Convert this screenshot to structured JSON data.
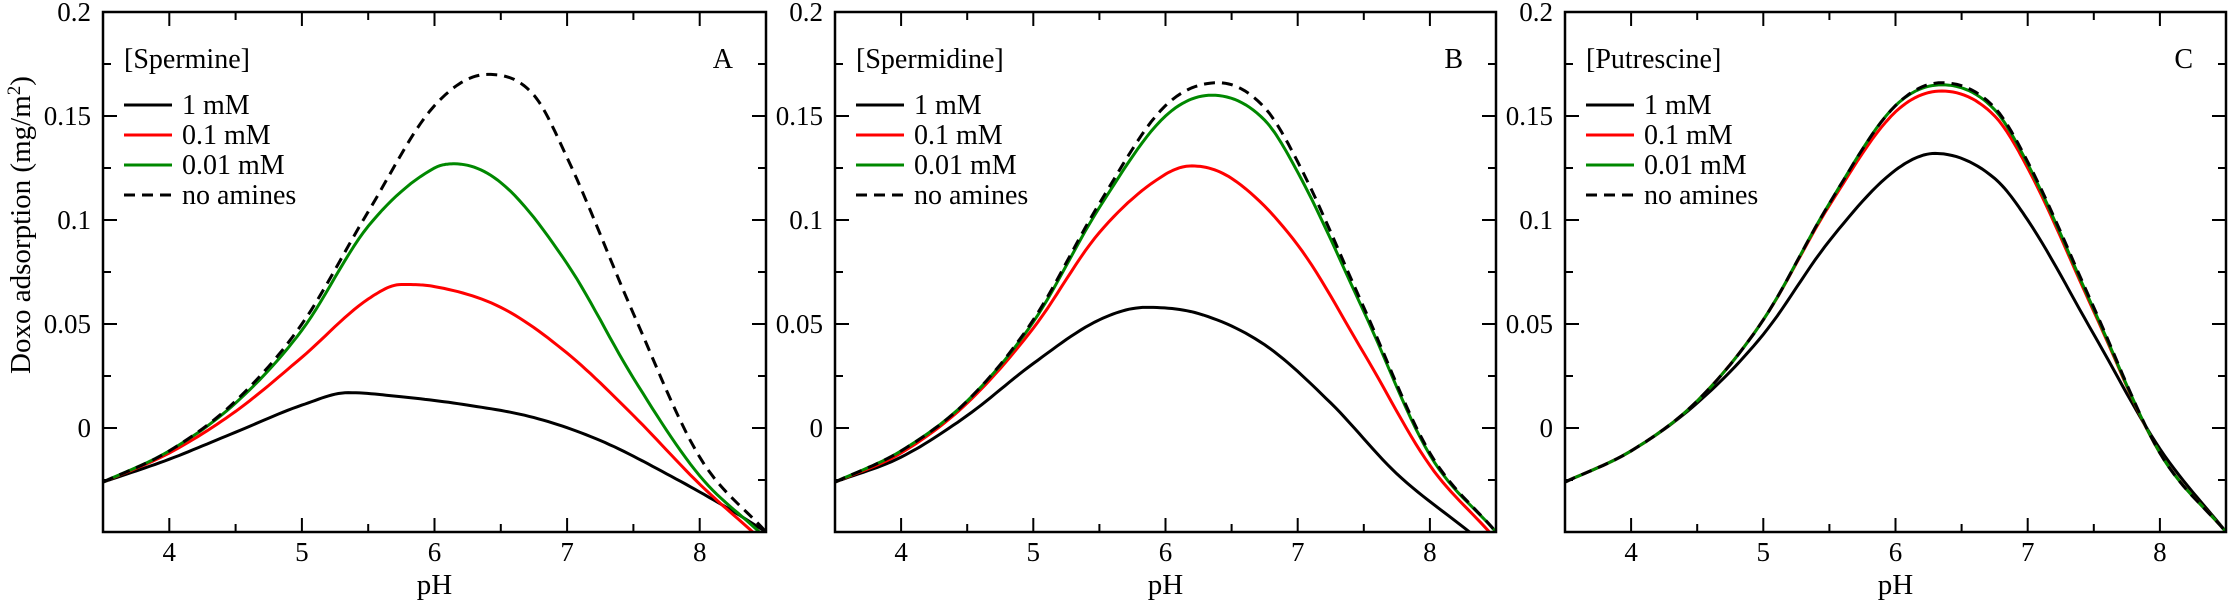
{
  "figure": {
    "ylabel_main": "Doxo adsorption (mg/m",
    "ylabel_sup": "2",
    "ylabel_close": ")"
  },
  "chart_data": [
    {
      "type": "line",
      "panel_letter": "A",
      "legend_title": "[Spermine]",
      "xlabel": "pH",
      "ylabel": "Doxo adsorption (mg/m2)",
      "xlim": [
        3.5,
        8.5
      ],
      "ylim": [
        -0.05,
        0.2
      ],
      "x_ticks": [
        "4",
        "5",
        "6",
        "7",
        "8"
      ],
      "y_ticks": [
        "0",
        "0.05",
        "0.1",
        "0.15",
        "0.2"
      ],
      "grid": false,
      "legend_position": "top-left",
      "series": [
        {
          "name": "1 mM",
          "color": "#000000",
          "dash": "solid",
          "x": [
            3.5,
            4.0,
            4.5,
            5.0,
            5.35,
            5.75,
            6.25,
            6.75,
            7.25,
            7.75,
            8.25,
            8.5
          ],
          "y": [
            -0.026,
            -0.015,
            -0.002,
            0.011,
            0.017,
            0.015,
            0.011,
            0.005,
            -0.006,
            -0.022,
            -0.04,
            -0.05
          ]
        },
        {
          "name": "0.1 mM",
          "color": "#ff0000",
          "dash": "solid",
          "x": [
            3.5,
            4.0,
            4.5,
            5.0,
            5.5,
            5.75,
            6.0,
            6.5,
            7.0,
            7.5,
            8.0,
            8.4
          ],
          "y": [
            -0.026,
            -0.012,
            0.008,
            0.034,
            0.062,
            0.069,
            0.068,
            0.058,
            0.036,
            0.006,
            -0.027,
            -0.05
          ]
        },
        {
          "name": "0.01 mM",
          "color": "#008800",
          "dash": "solid",
          "x": [
            3.5,
            4.0,
            4.5,
            5.0,
            5.5,
            6.0,
            6.15,
            6.5,
            7.0,
            7.5,
            8.0,
            8.45
          ],
          "y": [
            -0.026,
            -0.011,
            0.012,
            0.047,
            0.097,
            0.125,
            0.127,
            0.118,
            0.079,
            0.024,
            -0.023,
            -0.05
          ]
        },
        {
          "name": "no amines",
          "color": "#000000",
          "dash": "dashed",
          "x": [
            3.5,
            4.0,
            4.5,
            5.0,
            5.5,
            6.0,
            6.4,
            6.75,
            7.0,
            7.5,
            8.0,
            8.5
          ],
          "y": [
            -0.026,
            -0.011,
            0.013,
            0.05,
            0.104,
            0.155,
            0.17,
            0.16,
            0.13,
            0.055,
            -0.014,
            -0.05
          ]
        }
      ]
    },
    {
      "type": "line",
      "panel_letter": "B",
      "legend_title": "[Spermidine]",
      "xlabel": "pH",
      "ylabel": "Doxo adsorption (mg/m2)",
      "xlim": [
        3.5,
        8.5
      ],
      "ylim": [
        -0.05,
        0.2
      ],
      "x_ticks": [
        "4",
        "5",
        "6",
        "7",
        "8"
      ],
      "y_ticks": [
        "0",
        "0.05",
        "0.1",
        "0.15",
        "0.2"
      ],
      "grid": false,
      "legend_position": "top-left",
      "series": [
        {
          "name": "1 mM",
          "color": "#000000",
          "dash": "solid",
          "x": [
            3.5,
            4.0,
            4.5,
            5.0,
            5.5,
            5.85,
            6.25,
            6.75,
            7.25,
            7.75,
            8.3
          ],
          "y": [
            -0.026,
            -0.014,
            0.006,
            0.031,
            0.052,
            0.058,
            0.055,
            0.04,
            0.012,
            -0.022,
            -0.05
          ]
        },
        {
          "name": "0.1 mM",
          "color": "#ff0000",
          "dash": "solid",
          "x": [
            3.5,
            4.0,
            4.5,
            5.0,
            5.5,
            6.0,
            6.2,
            6.5,
            7.0,
            7.5,
            8.0,
            8.45
          ],
          "y": [
            -0.026,
            -0.012,
            0.012,
            0.048,
            0.094,
            0.122,
            0.126,
            0.12,
            0.088,
            0.036,
            -0.018,
            -0.05
          ]
        },
        {
          "name": "0.01 mM",
          "color": "#008800",
          "dash": "solid",
          "x": [
            3.5,
            4.0,
            4.5,
            5.0,
            5.5,
            6.0,
            6.35,
            6.75,
            7.0,
            7.5,
            8.0,
            8.5
          ],
          "y": [
            -0.026,
            -0.011,
            0.013,
            0.051,
            0.106,
            0.15,
            0.16,
            0.148,
            0.123,
            0.056,
            -0.013,
            -0.05
          ]
        },
        {
          "name": "no amines",
          "color": "#000000",
          "dash": "dashed",
          "x": [
            3.5,
            4.0,
            4.5,
            5.0,
            5.5,
            6.0,
            6.4,
            6.75,
            7.0,
            7.5,
            8.0,
            8.5
          ],
          "y": [
            -0.026,
            -0.011,
            0.013,
            0.052,
            0.108,
            0.155,
            0.166,
            0.154,
            0.128,
            0.058,
            -0.012,
            -0.05
          ]
        }
      ]
    },
    {
      "type": "line",
      "panel_letter": "C",
      "legend_title": "[Putrescine]",
      "xlabel": "pH",
      "ylabel": "Doxo adsorption (mg/m2)",
      "xlim": [
        3.5,
        8.5
      ],
      "ylim": [
        -0.05,
        0.2
      ],
      "x_ticks": [
        "4",
        "5",
        "6",
        "7",
        "8"
      ],
      "y_ticks": [
        "0",
        "0.05",
        "0.1",
        "0.15",
        "0.2"
      ],
      "grid": false,
      "legend_position": "top-left",
      "series": [
        {
          "name": "1 mM",
          "color": "#000000",
          "dash": "solid",
          "x": [
            3.5,
            4.0,
            4.5,
            5.0,
            5.5,
            6.0,
            6.3,
            6.75,
            7.0,
            7.5,
            8.0,
            8.5
          ],
          "y": [
            -0.026,
            -0.011,
            0.012,
            0.045,
            0.09,
            0.124,
            0.132,
            0.12,
            0.1,
            0.045,
            -0.01,
            -0.05
          ]
        },
        {
          "name": "0.1 mM",
          "color": "#ff0000",
          "dash": "solid",
          "x": [
            3.5,
            4.0,
            4.5,
            5.0,
            5.5,
            6.0,
            6.35,
            6.75,
            7.0,
            7.5,
            8.0,
            8.5
          ],
          "y": [
            -0.026,
            -0.011,
            0.013,
            0.052,
            0.107,
            0.152,
            0.162,
            0.15,
            0.125,
            0.056,
            -0.012,
            -0.05
          ]
        },
        {
          "name": "0.01 mM",
          "color": "#008800",
          "dash": "solid",
          "x": [
            3.5,
            4.0,
            4.5,
            5.0,
            5.5,
            6.0,
            6.35,
            6.75,
            7.0,
            7.5,
            8.0,
            8.5
          ],
          "y": [
            -0.026,
            -0.011,
            0.013,
            0.052,
            0.108,
            0.155,
            0.165,
            0.153,
            0.127,
            0.057,
            -0.012,
            -0.05
          ]
        },
        {
          "name": "no amines",
          "color": "#000000",
          "dash": "dashed",
          "x": [
            3.5,
            4.0,
            4.5,
            5.0,
            5.5,
            6.0,
            6.35,
            6.75,
            7.0,
            7.5,
            8.0,
            8.5
          ],
          "y": [
            -0.026,
            -0.011,
            0.013,
            0.052,
            0.108,
            0.155,
            0.166,
            0.154,
            0.128,
            0.058,
            -0.012,
            -0.05
          ]
        }
      ]
    }
  ]
}
